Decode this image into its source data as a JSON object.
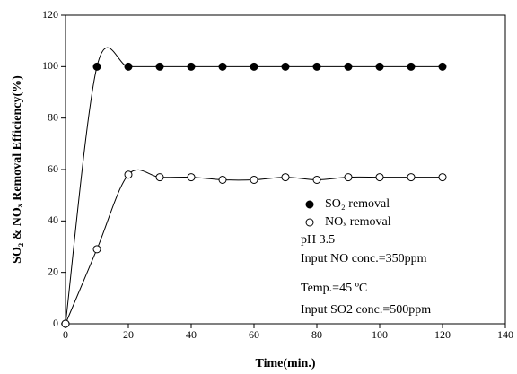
{
  "chart_data": {
    "type": "line",
    "xlabel": "Time(min.)",
    "ylabel": "SO₂ & NOₓ Removal Efficiency(%)",
    "x": [
      0,
      10,
      20,
      30,
      40,
      50,
      60,
      70,
      80,
      90,
      100,
      110,
      120
    ],
    "series": [
      {
        "name": "SO₂ removal",
        "color": "#000000",
        "marker": "filled",
        "values": [
          0,
          100,
          100,
          100,
          100,
          100,
          100,
          100,
          100,
          100,
          100,
          100,
          100
        ]
      },
      {
        "name": "NOₓ removal",
        "color": "#000000",
        "marker": "open",
        "values": [
          0,
          29,
          58,
          57,
          57,
          56,
          56,
          57,
          56,
          57,
          57,
          57,
          57
        ]
      }
    ],
    "xlim": [
      0,
      140
    ],
    "xticks": [
      0,
      20,
      40,
      60,
      80,
      100,
      120,
      140
    ],
    "ylim": [
      0,
      120
    ],
    "yticks": [
      0,
      20,
      40,
      60,
      80,
      100,
      120
    ],
    "legend_position": "right",
    "annotations": [
      "pH 3.5",
      "Input NO conc.=350ppm",
      "Temp.=45 ºC",
      "Input SO2 conc.=500ppm"
    ]
  }
}
